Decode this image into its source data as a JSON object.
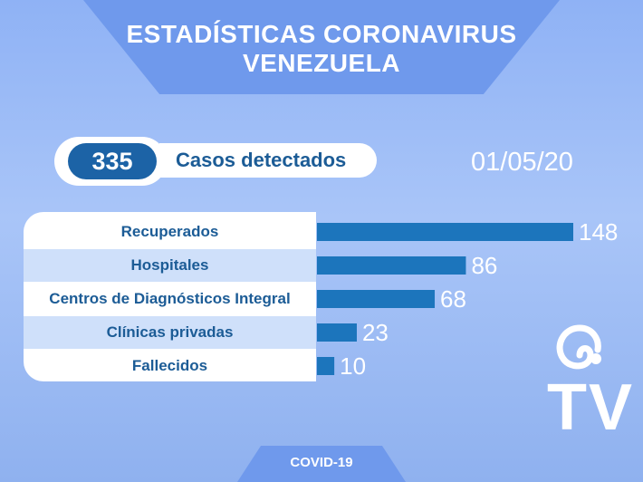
{
  "header": {
    "title_line1": "ESTADÍSTICAS CORONAVIRUS",
    "title_line2": "VENEZUELA"
  },
  "summary": {
    "total": "335",
    "total_label": "Casos detectados",
    "date": "01/05/20"
  },
  "footer": {
    "tag": "COVID-19"
  },
  "logo": {
    "text": "TV",
    "icon": "swirl-logo-icon"
  },
  "colors": {
    "bar": "#1c75bc",
    "label_text": "#1c5c96",
    "pill": "#1c63a6",
    "banner": "#6f99ec"
  },
  "chart_data": {
    "type": "bar",
    "orientation": "horizontal",
    "categories": [
      "Recuperados",
      "Hospitales",
      "Centros de Diagnósticos Integral",
      "Clínicas privadas",
      "Fallecidos"
    ],
    "values": [
      148,
      86,
      68,
      23,
      10
    ],
    "title": "",
    "xlabel": "",
    "ylabel": "",
    "xlim": [
      0,
      148
    ],
    "grid": false
  }
}
